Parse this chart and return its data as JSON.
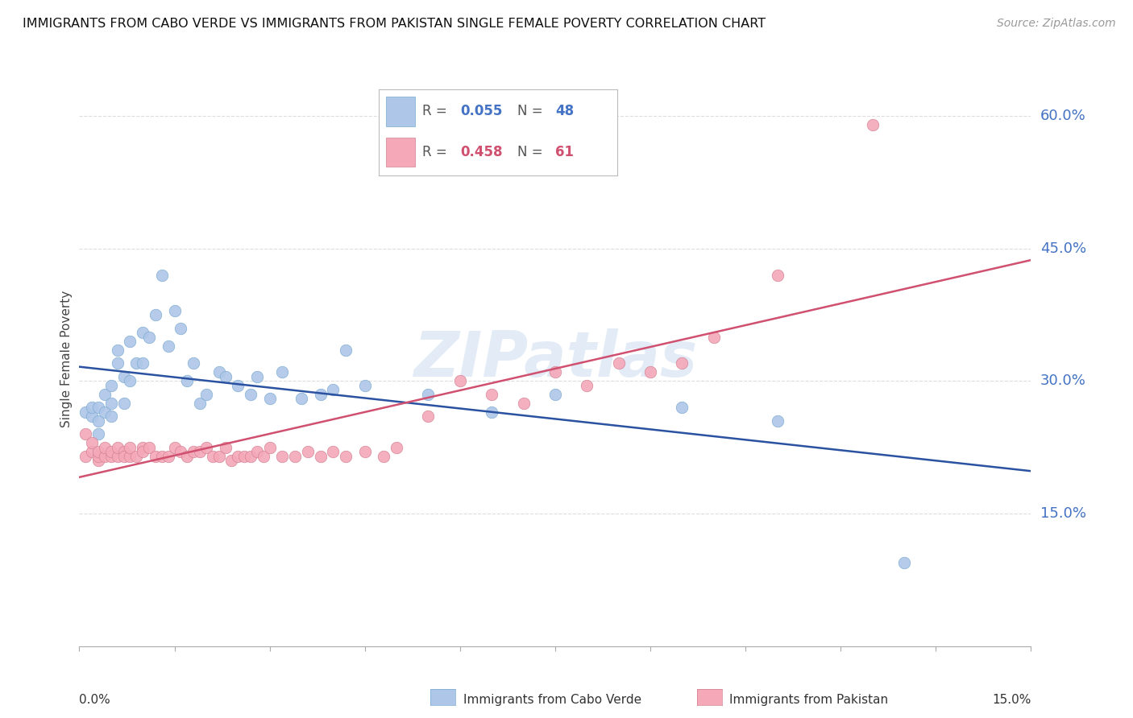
{
  "title": "IMMIGRANTS FROM CABO VERDE VS IMMIGRANTS FROM PAKISTAN SINGLE FEMALE POVERTY CORRELATION CHART",
  "source": "Source: ZipAtlas.com",
  "ylabel": "Single Female Poverty",
  "cabo_verde_color": "#aec6e8",
  "pakistan_color": "#f4a8b8",
  "cabo_verde_line_color": "#2a52a0",
  "pakistan_line_color": "#d05070",
  "cabo_verde_R": 0.055,
  "cabo_verde_N": 48,
  "pakistan_R": 0.458,
  "pakistan_N": 61,
  "watermark": "ZIPatlas",
  "cabo_verde_x": [
    0.001,
    0.002,
    0.002,
    0.003,
    0.003,
    0.003,
    0.004,
    0.004,
    0.005,
    0.005,
    0.005,
    0.006,
    0.006,
    0.007,
    0.007,
    0.008,
    0.008,
    0.009,
    0.01,
    0.01,
    0.011,
    0.012,
    0.013,
    0.014,
    0.015,
    0.016,
    0.017,
    0.018,
    0.019,
    0.02,
    0.022,
    0.023,
    0.025,
    0.027,
    0.028,
    0.03,
    0.032,
    0.035,
    0.038,
    0.04,
    0.042,
    0.045,
    0.055,
    0.065,
    0.075,
    0.095,
    0.11,
    0.13
  ],
  "cabo_verde_y": [
    0.265,
    0.26,
    0.27,
    0.255,
    0.27,
    0.24,
    0.265,
    0.285,
    0.26,
    0.275,
    0.295,
    0.32,
    0.335,
    0.275,
    0.305,
    0.3,
    0.345,
    0.32,
    0.32,
    0.355,
    0.35,
    0.375,
    0.42,
    0.34,
    0.38,
    0.36,
    0.3,
    0.32,
    0.275,
    0.285,
    0.31,
    0.305,
    0.295,
    0.285,
    0.305,
    0.28,
    0.31,
    0.28,
    0.285,
    0.29,
    0.335,
    0.295,
    0.285,
    0.265,
    0.285,
    0.27,
    0.255,
    0.095
  ],
  "pakistan_x": [
    0.001,
    0.001,
    0.002,
    0.002,
    0.003,
    0.003,
    0.003,
    0.004,
    0.004,
    0.005,
    0.005,
    0.006,
    0.006,
    0.007,
    0.007,
    0.008,
    0.008,
    0.009,
    0.01,
    0.01,
    0.011,
    0.012,
    0.013,
    0.014,
    0.015,
    0.016,
    0.017,
    0.018,
    0.019,
    0.02,
    0.021,
    0.022,
    0.023,
    0.024,
    0.025,
    0.026,
    0.027,
    0.028,
    0.029,
    0.03,
    0.032,
    0.034,
    0.036,
    0.038,
    0.04,
    0.042,
    0.045,
    0.048,
    0.05,
    0.055,
    0.06,
    0.065,
    0.07,
    0.075,
    0.08,
    0.085,
    0.09,
    0.095,
    0.1,
    0.11,
    0.125
  ],
  "pakistan_y": [
    0.24,
    0.215,
    0.22,
    0.23,
    0.21,
    0.215,
    0.22,
    0.215,
    0.225,
    0.215,
    0.22,
    0.215,
    0.225,
    0.22,
    0.215,
    0.215,
    0.225,
    0.215,
    0.225,
    0.22,
    0.225,
    0.215,
    0.215,
    0.215,
    0.225,
    0.22,
    0.215,
    0.22,
    0.22,
    0.225,
    0.215,
    0.215,
    0.225,
    0.21,
    0.215,
    0.215,
    0.215,
    0.22,
    0.215,
    0.225,
    0.215,
    0.215,
    0.22,
    0.215,
    0.22,
    0.215,
    0.22,
    0.215,
    0.225,
    0.26,
    0.3,
    0.285,
    0.275,
    0.31,
    0.295,
    0.32,
    0.31,
    0.32,
    0.35,
    0.42,
    0.59
  ],
  "xlim": [
    0.0,
    0.15
  ],
  "ylim": [
    0.0,
    0.65
  ],
  "yticks": [
    0.15,
    0.3,
    0.45,
    0.6
  ],
  "ytick_labels": [
    "15.0%",
    "30.0%",
    "45.0%",
    "60.0%"
  ],
  "background_color": "#ffffff",
  "grid_color": "#dddddd"
}
